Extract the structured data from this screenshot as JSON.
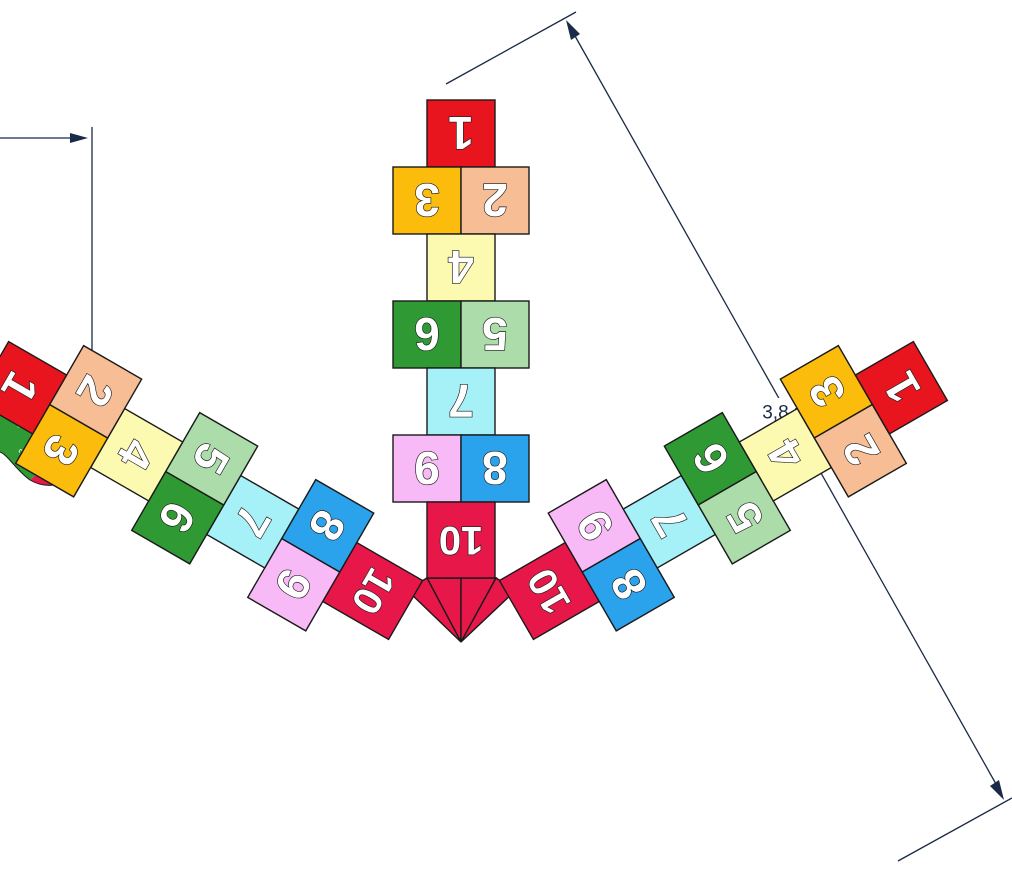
{
  "colors": {
    "c1": "#e8141e",
    "c2": "#f7bd95",
    "c3": "#fcbc0c",
    "c4": "#fcfab0",
    "c5": "#abdcaa",
    "c6": "#2f9a33",
    "c7": "#a6f0f8",
    "c8": "#2aa2ec",
    "c9": "#f8b9f7",
    "c10": "#e8174a",
    "dimension": "#1b2a48",
    "tail_light_green": "#58d23a",
    "tail_dark_green": "#2f9a33",
    "tail_red": "#e8174a"
  },
  "hopscotch": {
    "numbers": {
      "n1": "1",
      "n2": "2",
      "n3": "3",
      "n4": "4",
      "n5": "5",
      "n6": "6",
      "n7": "7",
      "n8": "8",
      "n9": "9",
      "n10": "10"
    }
  },
  "dimension": {
    "label": "3,8 m"
  },
  "left_fragment": {
    "label_a": "2",
    "label_b": "2"
  }
}
